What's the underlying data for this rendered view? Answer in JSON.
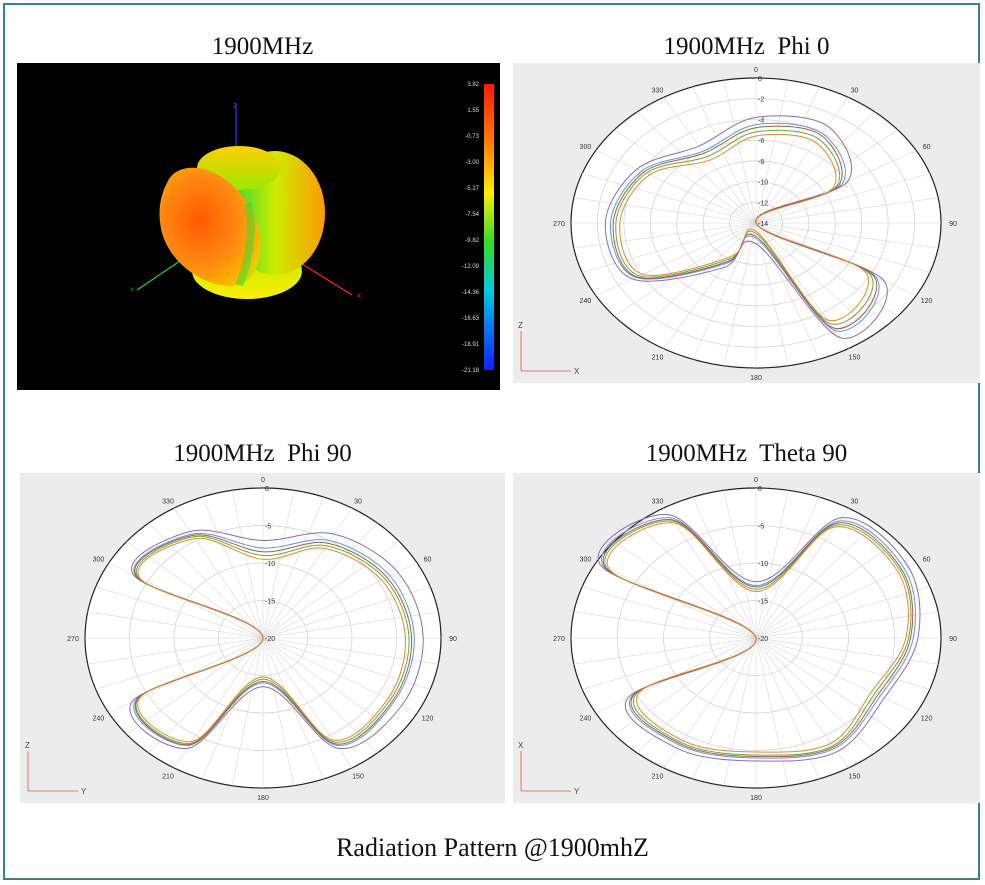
{
  "caption": "Radiation Pattern @1900mhZ",
  "colors": {
    "frame": "#3a7e9c",
    "series": [
      "#5b9bd5",
      "#8e6cb3",
      "#6aaa3a",
      "#a35c4a",
      "#e08a2e",
      "#3c8f58",
      "#b6a0d6"
    ]
  },
  "chart_data": [
    {
      "type": "surface-3d",
      "title": "1900MHz",
      "colorbar": {
        "ticks": [
          "3.82",
          "1.55",
          "-0.73",
          "-3.00",
          "-5.27",
          "-7.54",
          "-9.82",
          "-12.09",
          "-14.36",
          "-16.63",
          "-18.91",
          "-21.18"
        ]
      },
      "axes": [
        "Z",
        "X",
        "Y"
      ]
    },
    {
      "type": "polar",
      "title": "1900MHz  Phi 0",
      "angle_ticks": [
        "0",
        "30",
        "60",
        "90",
        "120",
        "150",
        "180",
        "210",
        "240",
        "270",
        "300",
        "330"
      ],
      "radial_ticks": [
        "0",
        "-2",
        "-4",
        "-6",
        "-8",
        "-10",
        "-12",
        "-14"
      ],
      "rlim": [
        -14,
        0
      ],
      "axis_labels": [
        "Z",
        "X"
      ],
      "angles": [
        0,
        30,
        60,
        90,
        120,
        150,
        180,
        210,
        240,
        270,
        300,
        330
      ],
      "series": [
        {
          "values": [
            -4.5,
            -4.0,
            -6.5,
            -14.0,
            -3.5,
            -2.0,
            -12.5,
            -9.5,
            -3.5,
            -3.0,
            -4.0,
            -6.0
          ]
        },
        {
          "values": [
            -3.8,
            -3.2,
            -6.0,
            -14.0,
            -2.8,
            -1.2,
            -12.0,
            -9.0,
            -3.2,
            -2.6,
            -3.6,
            -5.4
          ]
        },
        {
          "values": [
            -5.2,
            -4.6,
            -7.0,
            -14.0,
            -4.0,
            -2.8,
            -13.0,
            -10.0,
            -3.8,
            -3.4,
            -4.4,
            -6.6
          ]
        },
        {
          "values": [
            -4.8,
            -4.2,
            -6.8,
            -14.0,
            -3.7,
            -2.3,
            -12.7,
            -9.7,
            -3.6,
            -3.2,
            -4.2,
            -6.2
          ]
        },
        {
          "values": [
            -5.6,
            -5.0,
            -7.3,
            -14.0,
            -4.4,
            -3.2,
            -13.2,
            -10.3,
            -4.1,
            -3.7,
            -4.7,
            -7.0
          ]
        }
      ]
    },
    {
      "type": "polar",
      "title": "1900MHz  Phi 90",
      "angle_ticks": [
        "0",
        "30",
        "60",
        "90",
        "120",
        "150",
        "180",
        "210",
        "240",
        "270",
        "300",
        "330"
      ],
      "radial_ticks": [
        "0",
        "-5",
        "-10",
        "-15",
        "-20"
      ],
      "rlim": [
        -20,
        0
      ],
      "axis_labels": [
        "Z",
        "Y"
      ],
      "angles": [
        0,
        30,
        60,
        90,
        120,
        150,
        180,
        210,
        240,
        270,
        300,
        330
      ],
      "series": [
        {
          "values": [
            -8.0,
            -5.0,
            -3.5,
            -3.0,
            -3.0,
            -3.5,
            -14.0,
            -3.5,
            -3.5,
            -20.0,
            -3.5,
            -4.0
          ]
        },
        {
          "values": [
            -7.0,
            -4.0,
            -2.5,
            -2.0,
            -2.0,
            -3.0,
            -13.5,
            -3.0,
            -3.0,
            -20.0,
            -3.2,
            -3.6
          ]
        },
        {
          "values": [
            -9.0,
            -5.8,
            -4.2,
            -3.6,
            -3.5,
            -4.0,
            -14.5,
            -3.8,
            -3.8,
            -20.0,
            -3.8,
            -4.4
          ]
        },
        {
          "values": [
            -8.5,
            -5.4,
            -3.9,
            -3.3,
            -3.2,
            -3.7,
            -14.2,
            -3.6,
            -3.7,
            -20.0,
            -3.6,
            -4.2
          ]
        },
        {
          "values": [
            -9.5,
            -6.2,
            -4.6,
            -4.0,
            -3.8,
            -4.3,
            -14.8,
            -4.1,
            -4.0,
            -20.0,
            -4.0,
            -4.7
          ]
        }
      ]
    },
    {
      "type": "polar",
      "title": "1900MHz  Theta 90",
      "angle_ticks": [
        "0",
        "30",
        "60",
        "90",
        "120",
        "150",
        "180",
        "210",
        "240",
        "270",
        "300",
        "330"
      ],
      "radial_ticks": [
        "0",
        "-5",
        "-10",
        "-15",
        "-20"
      ],
      "rlim": [
        -20,
        0
      ],
      "axis_labels": [
        "X",
        "Y"
      ],
      "angles": [
        0,
        30,
        60,
        90,
        120,
        150,
        180,
        210,
        240,
        270,
        300,
        330
      ],
      "series": [
        {
          "values": [
            -13.0,
            -2.0,
            -1.5,
            -3.0,
            -4.5,
            -3.0,
            -4.0,
            -3.5,
            -4.5,
            -20.0,
            -1.0,
            -1.5
          ]
        },
        {
          "values": [
            -12.5,
            -1.5,
            -1.0,
            -2.5,
            -4.0,
            -2.5,
            -3.6,
            -3.0,
            -4.0,
            -20.0,
            -0.6,
            -1.0
          ]
        },
        {
          "values": [
            -13.5,
            -2.6,
            -2.0,
            -3.5,
            -5.2,
            -3.4,
            -4.4,
            -3.9,
            -5.0,
            -20.0,
            -1.4,
            -2.0
          ]
        },
        {
          "values": [
            -13.2,
            -2.3,
            -1.8,
            -3.3,
            -4.8,
            -3.2,
            -4.2,
            -3.7,
            -4.7,
            -20.0,
            -1.2,
            -1.8
          ]
        },
        {
          "values": [
            -13.8,
            -2.9,
            -2.3,
            -3.8,
            -5.6,
            -3.8,
            -4.8,
            -4.2,
            -5.4,
            -20.0,
            -1.7,
            -2.3
          ]
        }
      ]
    }
  ]
}
